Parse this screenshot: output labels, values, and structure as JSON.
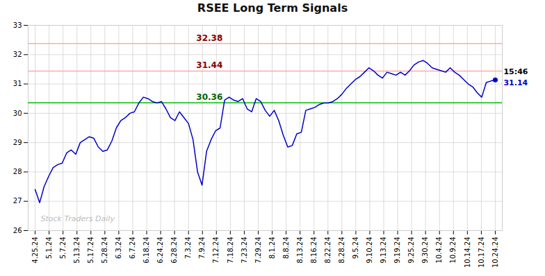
{
  "chart_data": {
    "type": "line",
    "title": "RSEE Long Term Signals",
    "color": "#0000cc",
    "background_color": "#ffffff",
    "grid_color": "#cccccc",
    "grid": true,
    "x": [
      0,
      0.323529,
      0.647059,
      0.970588,
      1.294118,
      1.617647,
      1.941176,
      2.264706,
      2.588235,
      2.911765,
      3.235294,
      3.558824,
      3.882353,
      4.205882,
      4.529412,
      4.852941,
      5.176471,
      5.5,
      5.823529,
      6.147059,
      6.470588,
      6.794118,
      7.117647,
      7.441176,
      7.764706,
      8.088235,
      8.411765,
      8.735294,
      9.058824,
      9.382353,
      9.705882,
      10.029412,
      10.352941,
      10.676471,
      11,
      11.323529,
      11.647059,
      11.970588,
      12.294118,
      12.617647,
      12.941176,
      13.264706,
      13.588235,
      13.911765,
      14.235294,
      14.558824,
      14.882353,
      15.205882,
      15.529412,
      15.852941,
      16.176471,
      16.5,
      16.823529,
      17.147059,
      17.470588,
      17.794118,
      18.117647,
      18.441176,
      18.764706,
      19.088235,
      19.411765,
      19.735294,
      20.058824,
      20.382353,
      20.705882,
      21.029412,
      21.352941,
      21.676471,
      22,
      22.323529,
      22.647059,
      22.970588,
      23.294118,
      23.617647,
      23.941176,
      24.264706,
      24.588235,
      24.911765,
      25.235294,
      25.558824,
      25.882353,
      26.205882,
      26.529412,
      26.852941,
      27.176471,
      27.5,
      27.823529,
      28.147059,
      28.470588,
      28.794118,
      29.117647,
      29.441176,
      29.764706,
      30.088235,
      30.411765,
      30.735294,
      31.058824,
      31.382353,
      31.705882,
      32.029412,
      32.352941,
      32.676471,
      33
    ],
    "values": [
      27.4,
      26.95,
      27.5,
      27.85,
      28.15,
      28.25,
      28.3,
      28.65,
      28.75,
      28.6,
      29.0,
      29.1,
      29.2,
      29.15,
      28.85,
      28.7,
      28.75,
      29.05,
      29.5,
      29.75,
      29.85,
      30.0,
      30.05,
      30.35,
      30.55,
      30.5,
      30.4,
      30.35,
      30.4,
      30.15,
      29.85,
      29.75,
      30.05,
      29.85,
      29.65,
      29.1,
      28.0,
      27.55,
      28.7,
      29.1,
      29.4,
      29.5,
      30.45,
      30.55,
      30.45,
      30.4,
      30.5,
      30.15,
      30.05,
      30.5,
      30.4,
      30.1,
      29.9,
      30.1,
      29.75,
      29.25,
      28.85,
      28.9,
      29.3,
      29.35,
      30.1,
      30.15,
      30.2,
      30.3,
      30.35,
      30.35,
      30.4,
      30.5,
      30.65,
      30.85,
      31.0,
      31.15,
      31.25,
      31.4,
      31.55,
      31.45,
      31.3,
      31.2,
      31.4,
      31.35,
      31.3,
      31.4,
      31.3,
      31.45,
      31.65,
      31.75,
      31.8,
      31.7,
      31.55,
      31.5,
      31.45,
      31.4,
      31.55,
      31.4,
      31.3,
      31.15,
      31.0,
      30.9,
      30.7,
      30.55,
      31.05,
      31.1,
      31.14
    ],
    "xlim": [
      -0.5,
      33.5
    ],
    "xticks": [
      {
        "value": 0,
        "label": "4.25.24"
      },
      {
        "value": 1,
        "label": "5.1.24"
      },
      {
        "value": 2,
        "label": "5.7.24"
      },
      {
        "value": 3,
        "label": "5.13.24"
      },
      {
        "value": 4,
        "label": "5.17.24"
      },
      {
        "value": 5,
        "label": "5.28.24"
      },
      {
        "value": 6,
        "label": "6.3.24"
      },
      {
        "value": 7,
        "label": "6.7.24"
      },
      {
        "value": 8,
        "label": "6.18.24"
      },
      {
        "value": 9,
        "label": "6.24.24"
      },
      {
        "value": 10,
        "label": "6.28.24"
      },
      {
        "value": 11,
        "label": "7.3.24"
      },
      {
        "value": 12,
        "label": "7.9.24"
      },
      {
        "value": 13,
        "label": "7.12.24"
      },
      {
        "value": 14,
        "label": "7.18.24"
      },
      {
        "value": 15,
        "label": "7.23.24"
      },
      {
        "value": 16,
        "label": "7.29.24"
      },
      {
        "value": 17,
        "label": "8.1.24"
      },
      {
        "value": 18,
        "label": "8.8.24"
      },
      {
        "value": 19,
        "label": "8.13.24"
      },
      {
        "value": 20,
        "label": "8.16.24"
      },
      {
        "value": 21,
        "label": "8.22.24"
      },
      {
        "value": 22,
        "label": "8.28.24"
      },
      {
        "value": 23,
        "label": "9.5.24"
      },
      {
        "value": 24,
        "label": "9.10.24"
      },
      {
        "value": 25,
        "label": "9.13.24"
      },
      {
        "value": 26,
        "label": "9.19.24"
      },
      {
        "value": 27,
        "label": "9.25.24"
      },
      {
        "value": 28,
        "label": "9.30.24"
      },
      {
        "value": 29,
        "label": "10.4.24"
      },
      {
        "value": 30,
        "label": "10.9.24"
      },
      {
        "value": 31,
        "label": "10.14.24"
      },
      {
        "value": 32,
        "label": "10.17.24"
      },
      {
        "value": 33,
        "label": "10.24.24"
      }
    ],
    "ylim": [
      26,
      33
    ],
    "yticks": [
      26,
      27,
      28,
      29,
      30,
      31,
      32,
      33
    ],
    "reference_lines": [
      {
        "value": 32.38,
        "color": "#ffaaaa",
        "label": "32.38",
        "label_color": "#880000"
      },
      {
        "value": 31.44,
        "color": "#ffaaaa",
        "label": "31.44",
        "label_color": "#880000"
      },
      {
        "value": 30.36,
        "color": "#00bb00",
        "label": "30.36",
        "label_color": "#006600"
      }
    ],
    "annotations": [
      {
        "x": 33,
        "y": 31.14,
        "text": "15:46",
        "color": "#000000"
      },
      {
        "x": 33,
        "y": 31.14,
        "text": "31.14",
        "color": "#0000cc"
      }
    ],
    "watermark": "Stock Traders Daily"
  }
}
